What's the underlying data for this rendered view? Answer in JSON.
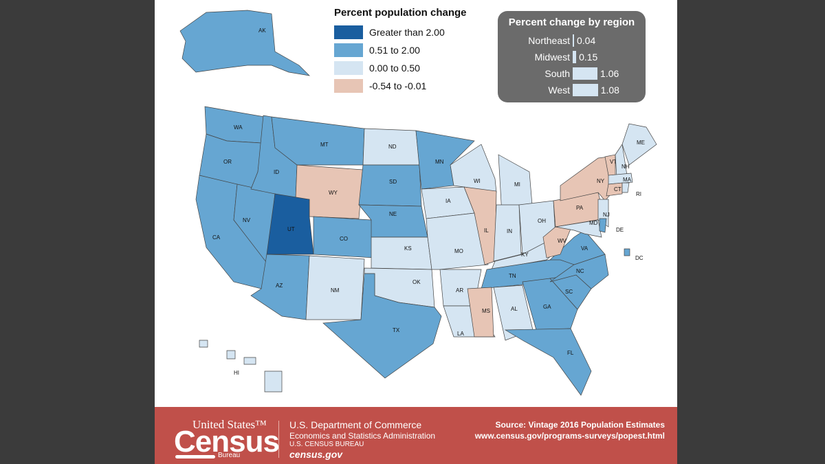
{
  "legend": {
    "title": "Percent population change",
    "items": [
      {
        "label": "Greater than 2.00",
        "color": "#1a5e9f"
      },
      {
        "label": "0.51 to 2.00",
        "color": "#66a6d2"
      },
      {
        "label": "0.00 to 0.50",
        "color": "#d5e5f2"
      },
      {
        "label": "-0.54 to -0.01",
        "color": "#e7c5b5"
      }
    ]
  },
  "regions": {
    "title": "Percent change by region",
    "items": [
      {
        "name": "Northeast",
        "value": "0.04",
        "v": 0.04
      },
      {
        "name": "Midwest",
        "value": "0.15",
        "v": 0.15
      },
      {
        "name": "South",
        "value": "1.06",
        "v": 1.06
      },
      {
        "name": "West",
        "value": "1.08",
        "v": 1.08
      }
    ]
  },
  "states": [
    [
      "WA",
      1
    ],
    [
      "OR",
      1
    ],
    [
      "CA",
      1
    ],
    [
      "NV",
      1
    ],
    [
      "ID",
      1
    ],
    [
      "MT",
      1
    ],
    [
      "WY",
      3
    ],
    [
      "UT",
      0
    ],
    [
      "CO",
      1
    ],
    [
      "AZ",
      1
    ],
    [
      "NM",
      2
    ],
    [
      "ND",
      2
    ],
    [
      "SD",
      1
    ],
    [
      "NE",
      1
    ],
    [
      "KS",
      2
    ],
    [
      "OK",
      2
    ],
    [
      "TX",
      1
    ],
    [
      "MN",
      1
    ],
    [
      "IA",
      2
    ],
    [
      "MO",
      2
    ],
    [
      "AR",
      2
    ],
    [
      "LA",
      2
    ],
    [
      "WI",
      2
    ],
    [
      "IL",
      3
    ],
    [
      "MI",
      2
    ],
    [
      "IN",
      2
    ],
    [
      "OH",
      2
    ],
    [
      "KY",
      2
    ],
    [
      "TN",
      1
    ],
    [
      "MS",
      3
    ],
    [
      "AL",
      2
    ],
    [
      "GA",
      1
    ],
    [
      "FL",
      1
    ],
    [
      "SC",
      1
    ],
    [
      "NC",
      1
    ],
    [
      "VA",
      1
    ],
    [
      "WV",
      3
    ],
    [
      "PA",
      3
    ],
    [
      "NY",
      3
    ],
    [
      "NJ",
      2
    ],
    [
      "MD",
      2
    ],
    [
      "DE",
      1
    ],
    [
      "VT",
      3
    ],
    [
      "NH",
      2
    ],
    [
      "ME",
      2
    ],
    [
      "MA",
      2
    ],
    [
      "CT",
      3
    ],
    [
      "RI",
      2
    ],
    [
      "AK",
      1
    ],
    [
      "HI",
      2
    ],
    [
      "DC",
      1
    ]
  ],
  "footer": {
    "logo_top": "United States™",
    "logo_main": "Census",
    "logo_bottom": "Bureau",
    "dept": "U.S. Department of Commerce",
    "admin": "Economics and Statistics Administration",
    "bureau": "U.S. CENSUS BUREAU",
    "site": "census.gov",
    "source": "Source: Vintage 2016 Population Estimates",
    "url": "www.census.gov/programs-surveys/popest.html"
  }
}
